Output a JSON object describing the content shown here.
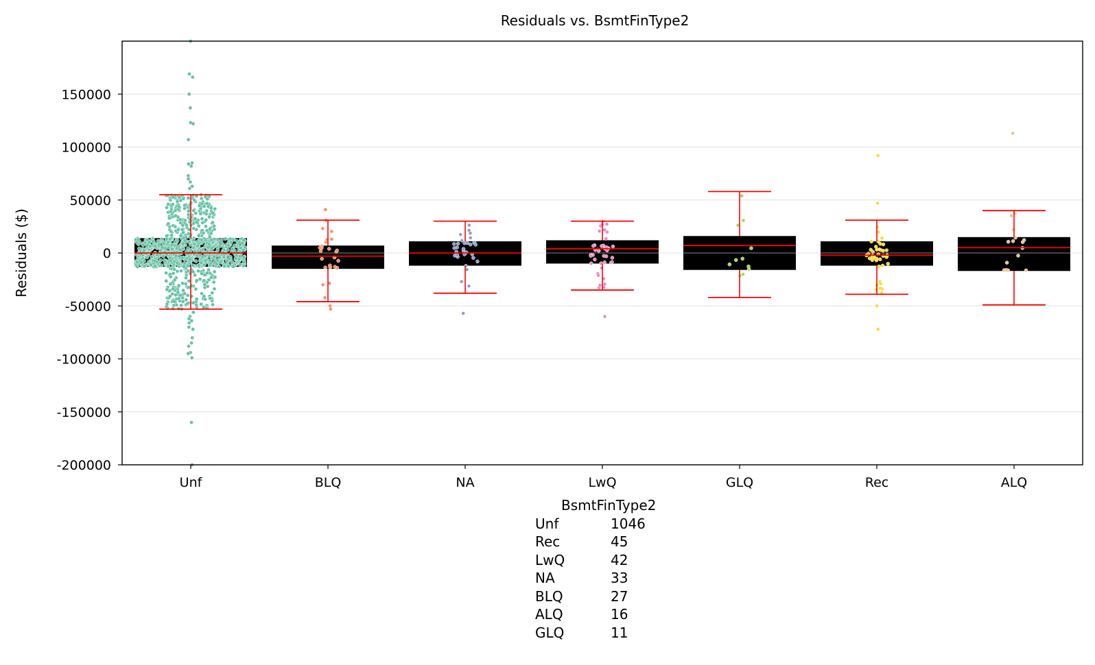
{
  "chart_data": {
    "type": "box+swarm",
    "title": "Residuals vs. BsmtFinType2",
    "xlabel": "",
    "ylabel": "Residuals ($)",
    "ylim": [
      -200000,
      200000
    ],
    "yticks": [
      -200000,
      -150000,
      -100000,
      -50000,
      0,
      50000,
      100000,
      150000
    ],
    "grid": true,
    "categories": [
      "Unf",
      "BLQ",
      "NA",
      "LwQ",
      "GLQ",
      "Rec",
      "ALQ"
    ],
    "colors": [
      "#66c2a5",
      "#fc8d62",
      "#8da0cb",
      "#e78ac3",
      "#a6d854",
      "#ffd92f",
      "#e5c494"
    ],
    "box_color": "#000000",
    "median_color": "#ff0000",
    "whisker_color": "#ff0000",
    "boxes": [
      {
        "category": "Unf",
        "whisker_low": -53000,
        "q1": -13000,
        "median": 0,
        "q3": 14000,
        "whisker_high": 55000
      },
      {
        "category": "BLQ",
        "whisker_low": -46000,
        "q1": -15000,
        "median": -3000,
        "q3": 7000,
        "whisker_high": 31000
      },
      {
        "category": "NA",
        "whisker_low": -38000,
        "q1": -12000,
        "median": 0,
        "q3": 11000,
        "whisker_high": 30000
      },
      {
        "category": "LwQ",
        "whisker_low": -35000,
        "q1": -10000,
        "median": 4000,
        "q3": 12000,
        "whisker_high": 30000
      },
      {
        "category": "GLQ",
        "whisker_low": -42000,
        "q1": -16000,
        "median": 7000,
        "q3": 16000,
        "whisker_high": 58000
      },
      {
        "category": "Rec",
        "whisker_low": -39000,
        "q1": -12000,
        "median": -2000,
        "q3": 11000,
        "whisker_high": 31000
      },
      {
        "category": "ALQ",
        "whisker_low": -49000,
        "q1": -17000,
        "median": 5000,
        "q3": 15000,
        "whisker_high": 40000
      }
    ],
    "outliers": {
      "Unf": [
        200000,
        169000,
        166000,
        150000,
        137000,
        123000,
        122000,
        107000,
        85000,
        84000,
        82000,
        73000,
        70000,
        67000,
        63000,
        61000,
        -56000,
        -60000,
        -62000,
        -64000,
        -66000,
        -70000,
        -72000,
        -80000,
        -85000,
        -88000,
        -94000,
        -95000,
        -99000,
        -160000,
        -200000
      ],
      "BLQ": [
        41000,
        -50000,
        -53000
      ],
      "NA": [
        -57000
      ],
      "LwQ": [
        -60000
      ],
      "Rec": [
        92000,
        47000,
        -50000,
        -72000
      ],
      "ALQ": [
        113000
      ]
    },
    "counts": {
      "header": "BsmtFinType2",
      "rows": [
        {
          "label": "Unf",
          "value": "1046"
        },
        {
          "label": "Rec",
          "value": "45"
        },
        {
          "label": "LwQ",
          "value": "42"
        },
        {
          "label": "NA",
          "value": "33"
        },
        {
          "label": "BLQ",
          "value": "27"
        },
        {
          "label": "ALQ",
          "value": "16"
        },
        {
          "label": "GLQ",
          "value": "11"
        }
      ]
    }
  }
}
